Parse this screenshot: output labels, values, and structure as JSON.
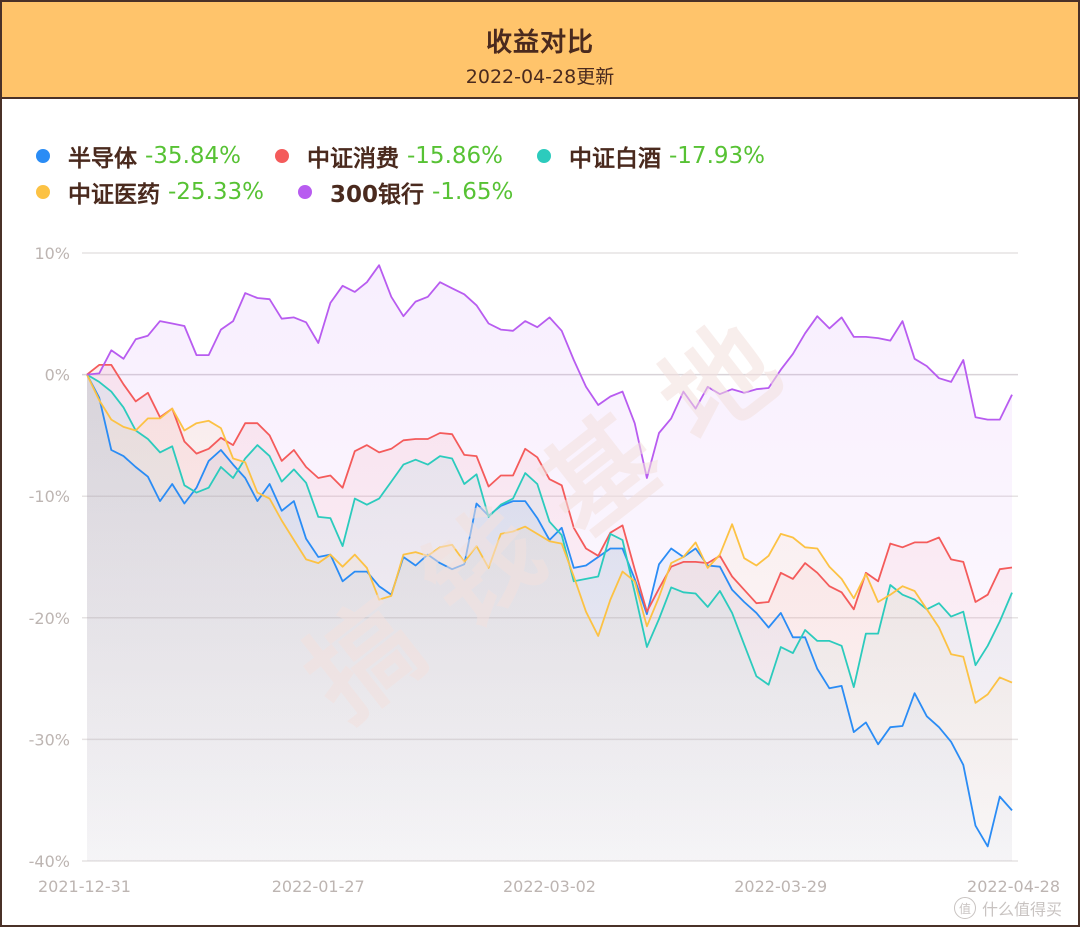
{
  "header": {
    "title": "收益对比",
    "subtitle": "2022-04-28更新"
  },
  "legend": [
    {
      "name": "半导体",
      "value": "-35.84%",
      "color": "#2a8cf5"
    },
    {
      "name": "中证消费",
      "value": "-15.86%",
      "color": "#f45b5b"
    },
    {
      "name": "中证白酒",
      "value": "-17.93%",
      "color": "#2ccbbd"
    },
    {
      "name": "中证医药",
      "value": "-25.33%",
      "color": "#fcc244"
    },
    {
      "name": "300银行",
      "value": "-1.65%",
      "color": "#b85cf0"
    }
  ],
  "watermark": "搞钱基地",
  "logo": {
    "badge": "值",
    "text": "什么值得买"
  },
  "colors": {
    "header_bg": "#ffc46b",
    "border": "#4a3128",
    "positive_green": "#57c234",
    "grid": "#e3e0e0",
    "axis_text": "#bdb5b2"
  },
  "chart_data": {
    "type": "line",
    "title": "收益对比",
    "subtitle": "2022-04-28更新",
    "xlabel": "",
    "ylabel": "",
    "ylim": [
      -40,
      10
    ],
    "yticks": [
      10,
      0,
      -10,
      -20,
      -30,
      -40
    ],
    "ytick_labels": [
      "10%",
      "0%",
      "-10%",
      "-20%",
      "-30%",
      "-40%"
    ],
    "x_tick_labels": [
      "2021-12-31",
      "2022-01-27",
      "2022-03-02",
      "2022-03-29",
      "2022-04-28"
    ],
    "x_tick_indices": [
      0,
      19,
      38,
      57,
      76
    ],
    "num_points": 77,
    "grid": true,
    "legend_position": "top-left",
    "series": [
      {
        "name": "半导体",
        "color": "#2a8cf5",
        "final": -35.84,
        "values": [
          0,
          -1.9,
          -6.2,
          -6.7,
          -7.6,
          -8.4,
          -10.4,
          -9.0,
          -10.6,
          -9.3,
          -7.1,
          -6.2,
          -7.4,
          -8.5,
          -10.4,
          -9.0,
          -11.2,
          -10.4,
          -13.5,
          -15.0,
          -14.8,
          -17.0,
          -16.2,
          -16.2,
          -17.4,
          -18.1,
          -15.0,
          -15.7,
          -14.8,
          -15.5,
          -16.0,
          -15.6,
          -10.6,
          -11.6,
          -10.8,
          -10.4,
          -10.4,
          -11.8,
          -13.6,
          -12.6,
          -15.9,
          -15.7,
          -15.0,
          -14.3,
          -14.3,
          -16.8,
          -19.7,
          -15.6,
          -14.3,
          -15.0,
          -14.3,
          -15.7,
          -15.8,
          -17.7,
          -18.7,
          -19.6,
          -20.8,
          -19.6,
          -21.6,
          -21.6,
          -24.2,
          -25.8,
          -25.6,
          -29.4,
          -28.6,
          -30.4,
          -29.0,
          -28.9,
          -26.2,
          -28.1,
          -29.0,
          -30.2,
          -32.1,
          -37.1,
          -38.8,
          -34.7,
          -35.84
        ]
      },
      {
        "name": "中证消费",
        "color": "#f45b5b",
        "final": -15.86,
        "values": [
          0,
          0.8,
          0.8,
          -0.8,
          -2.2,
          -1.5,
          -3.5,
          -2.8,
          -5.5,
          -6.5,
          -6.1,
          -5.2,
          -5.8,
          -4.0,
          -4.0,
          -5.0,
          -7.1,
          -6.2,
          -7.6,
          -8.5,
          -8.3,
          -9.3,
          -6.3,
          -5.8,
          -6.4,
          -6.1,
          -5.4,
          -5.3,
          -5.3,
          -4.8,
          -4.9,
          -6.6,
          -6.7,
          -9.2,
          -8.3,
          -8.3,
          -6.1,
          -6.8,
          -8.6,
          -9.1,
          -12.6,
          -14.3,
          -14.9,
          -13.0,
          -12.4,
          -16.0,
          -19.5,
          -17.6,
          -15.8,
          -15.4,
          -15.4,
          -15.5,
          -14.9,
          -16.6,
          -17.7,
          -18.8,
          -18.7,
          -16.3,
          -16.8,
          -15.5,
          -16.3,
          -17.4,
          -17.9,
          -19.3,
          -16.3,
          -17.0,
          -13.9,
          -14.2,
          -13.8,
          -13.8,
          -13.4,
          -15.2,
          -15.4,
          -18.7,
          -18.1,
          -16.0,
          -15.86
        ]
      },
      {
        "name": "中证白酒",
        "color": "#2ccbbd",
        "final": -17.93,
        "values": [
          0,
          -0.6,
          -1.4,
          -2.7,
          -4.6,
          -5.3,
          -6.4,
          -5.9,
          -9.1,
          -9.7,
          -9.3,
          -7.6,
          -8.5,
          -6.9,
          -5.8,
          -6.7,
          -8.8,
          -7.8,
          -8.9,
          -11.7,
          -11.8,
          -14.1,
          -10.2,
          -10.7,
          -10.2,
          -8.8,
          -7.4,
          -7.0,
          -7.4,
          -6.7,
          -6.9,
          -9.0,
          -8.2,
          -11.7,
          -10.7,
          -10.2,
          -8.1,
          -9.0,
          -12.1,
          -13.2,
          -17.0,
          -16.8,
          -16.6,
          -13.1,
          -13.6,
          -17.9,
          -22.4,
          -20.1,
          -17.5,
          -17.9,
          -18.0,
          -19.1,
          -17.8,
          -19.6,
          -22.2,
          -24.8,
          -25.5,
          -22.4,
          -22.9,
          -21.0,
          -21.9,
          -21.9,
          -22.3,
          -25.7,
          -21.3,
          -21.3,
          -17.3,
          -18.1,
          -18.5,
          -19.3,
          -18.8,
          -19.9,
          -19.5,
          -23.9,
          -22.3,
          -20.3,
          -17.93
        ]
      },
      {
        "name": "中证医药",
        "color": "#fcc244",
        "final": -25.33,
        "values": [
          0,
          -2.1,
          -3.7,
          -4.3,
          -4.6,
          -3.6,
          -3.6,
          -2.8,
          -4.6,
          -4.0,
          -3.8,
          -4.4,
          -6.9,
          -7.2,
          -9.7,
          -10.2,
          -12.0,
          -13.6,
          -15.2,
          -15.5,
          -14.8,
          -15.8,
          -14.8,
          -15.9,
          -18.5,
          -18.2,
          -14.8,
          -14.6,
          -14.9,
          -14.2,
          -14.0,
          -15.4,
          -14.1,
          -15.9,
          -13.1,
          -12.9,
          -12.5,
          -13.1,
          -13.7,
          -13.9,
          -16.6,
          -19.5,
          -21.5,
          -18.5,
          -16.2,
          -17.0,
          -20.7,
          -18.3,
          -15.5,
          -15.0,
          -13.8,
          -15.9,
          -14.8,
          -12.3,
          -15.1,
          -15.7,
          -14.9,
          -13.1,
          -13.4,
          -14.2,
          -14.3,
          -15.8,
          -16.8,
          -18.4,
          -16.4,
          -18.7,
          -18.1,
          -17.4,
          -17.8,
          -19.3,
          -20.8,
          -23.0,
          -23.2,
          -27.0,
          -26.3,
          -24.9,
          -25.33
        ]
      },
      {
        "name": "300银行",
        "color": "#b85cf0",
        "final": -1.65,
        "values": [
          0,
          0.1,
          2.0,
          1.3,
          2.9,
          3.2,
          4.4,
          4.2,
          4.0,
          1.6,
          1.6,
          3.7,
          4.4,
          6.7,
          6.3,
          6.2,
          4.6,
          4.7,
          4.3,
          2.6,
          5.9,
          7.3,
          6.8,
          7.6,
          9.0,
          6.4,
          4.8,
          6.0,
          6.4,
          7.6,
          7.1,
          6.6,
          5.7,
          4.2,
          3.7,
          3.6,
          4.4,
          3.9,
          4.7,
          3.6,
          1.2,
          -1.0,
          -2.5,
          -1.8,
          -1.4,
          -4.0,
          -8.5,
          -4.8,
          -3.6,
          -1.4,
          -2.8,
          -1.0,
          -1.6,
          -1.2,
          -1.5,
          -1.2,
          -1.1,
          0.4,
          1.7,
          3.4,
          4.8,
          3.8,
          4.7,
          3.1,
          3.1,
          3.0,
          2.8,
          4.4,
          1.3,
          0.7,
          -0.3,
          -0.6,
          1.2,
          -3.5,
          -3.7,
          -3.7,
          -1.65
        ]
      }
    ]
  }
}
